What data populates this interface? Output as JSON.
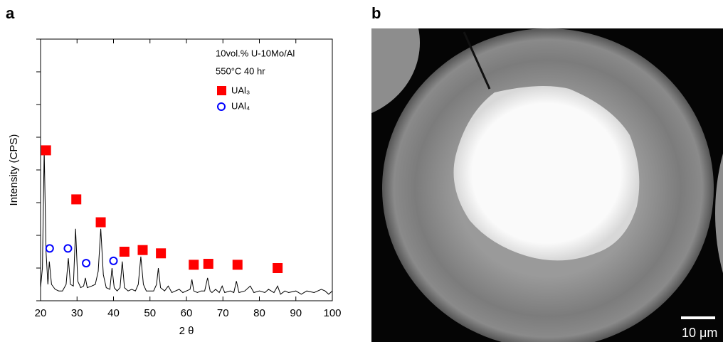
{
  "panel_labels": [
    "a",
    "b"
  ],
  "micrograph": {
    "scale_bar_label": "10 μm"
  },
  "chart_data": {
    "type": "line",
    "xlabel": "2 θ",
    "ylabel": "Intensity (CPS)",
    "annotations": [
      "10vol.% U-10Mo/Al",
      "550°C 40 hr"
    ],
    "xlim": [
      20,
      100
    ],
    "xticks": [
      20,
      30,
      40,
      50,
      60,
      70,
      80,
      90,
      100
    ],
    "ylim": [
      0,
      8
    ],
    "yticks": [
      0,
      1,
      2,
      3,
      4,
      5,
      6,
      7,
      8
    ],
    "pattern": {
      "color": "#000000",
      "x": [
        20,
        20.5,
        21,
        21.5,
        22,
        22.4,
        23,
        24,
        25,
        26,
        27,
        27.6,
        28.2,
        29,
        29.6,
        30.2,
        31,
        31.8,
        32.3,
        32.8,
        34,
        35,
        35.8,
        36.5,
        37.2,
        38,
        39,
        39.6,
        40.2,
        41,
        41.8,
        42.4,
        43,
        44,
        45,
        46,
        46.8,
        47.5,
        48.2,
        49,
        50,
        51,
        51.8,
        52.3,
        52.9,
        54,
        55,
        56,
        57,
        58,
        59,
        60,
        61,
        61.5,
        62,
        63,
        64,
        65,
        65.8,
        66.5,
        67,
        68,
        69,
        69.8,
        70.5,
        72,
        73,
        73.7,
        74.4,
        76,
        77.5,
        78.5,
        80,
        81.5,
        82.5,
        84,
        85,
        85.8,
        87,
        88,
        90,
        91.5,
        93,
        95,
        97,
        98,
        99,
        100
      ],
      "values": [
        0.4,
        1.0,
        4.6,
        1.5,
        0.5,
        1.2,
        0.5,
        0.35,
        0.3,
        0.3,
        0.5,
        1.3,
        0.5,
        0.45,
        2.2,
        0.6,
        0.4,
        0.45,
        0.7,
        0.4,
        0.45,
        0.5,
        0.9,
        2.2,
        0.8,
        0.4,
        0.35,
        1.0,
        0.4,
        0.3,
        0.4,
        1.2,
        0.4,
        0.3,
        0.35,
        0.3,
        0.5,
        1.35,
        0.5,
        0.3,
        0.3,
        0.3,
        0.5,
        1.0,
        0.4,
        0.3,
        0.45,
        0.25,
        0.3,
        0.35,
        0.25,
        0.3,
        0.35,
        0.65,
        0.3,
        0.25,
        0.3,
        0.3,
        0.7,
        0.3,
        0.25,
        0.35,
        0.25,
        0.45,
        0.25,
        0.3,
        0.25,
        0.6,
        0.25,
        0.3,
        0.45,
        0.25,
        0.3,
        0.25,
        0.35,
        0.25,
        0.45,
        0.2,
        0.3,
        0.25,
        0.3,
        0.2,
        0.3,
        0.25,
        0.35,
        0.3,
        0.2,
        0.3
      ]
    },
    "series": [
      {
        "name": "UAl₃",
        "color": "#ff0000",
        "marker": "square",
        "x": [
          21.5,
          29.8,
          36.5,
          43,
          48,
          53,
          62,
          66,
          74,
          85
        ],
        "values": [
          4.6,
          3.1,
          2.4,
          1.5,
          1.55,
          1.45,
          1.1,
          1.13,
          1.1,
          1.0
        ]
      },
      {
        "name": "UAl₄",
        "color": "#0000ff",
        "marker": "circle",
        "x": [
          22.5,
          27.5,
          32.5,
          40
        ],
        "values": [
          1.6,
          1.6,
          1.15,
          1.22
        ]
      }
    ]
  }
}
